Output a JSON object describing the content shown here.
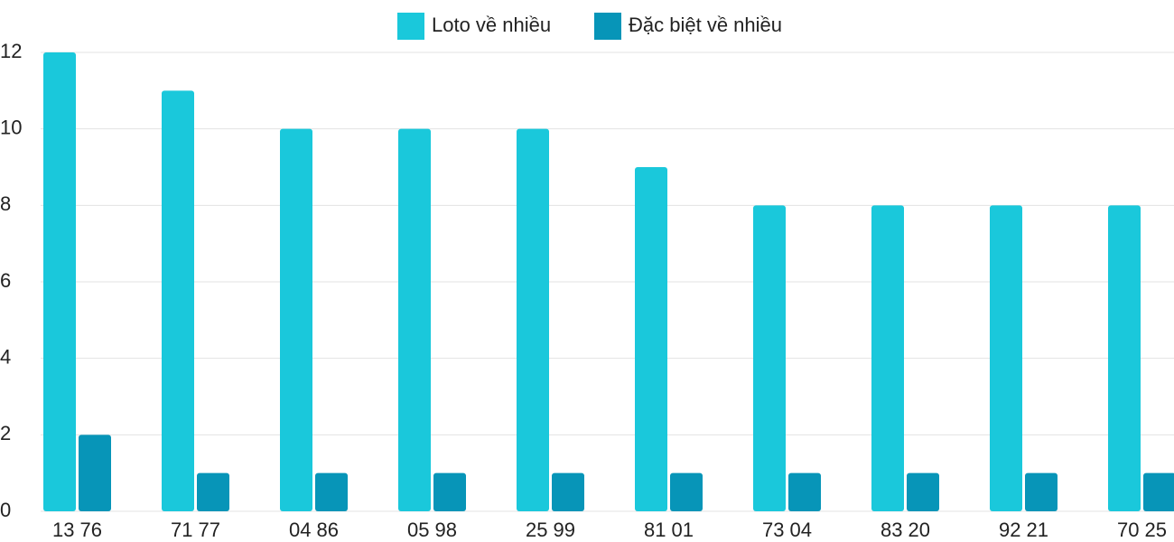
{
  "chart_data": {
    "type": "bar",
    "categories": [
      "13 76",
      "71 77",
      "04 86",
      "05 98",
      "25 99",
      "81 01",
      "73 04",
      "83 20",
      "92 21",
      "70 25"
    ],
    "series": [
      {
        "name": "Loto về nhiều",
        "color": "#1ac8db",
        "values": [
          12,
          11,
          10,
          10,
          10,
          9,
          8,
          8,
          8,
          8
        ]
      },
      {
        "name": "Đặc biệt về nhiều",
        "color": "#0795b8",
        "values": [
          2,
          1,
          1,
          1,
          1,
          1,
          1,
          1,
          1,
          1
        ]
      }
    ],
    "ylim": [
      0,
      12
    ],
    "yticks": [
      0,
      2,
      4,
      6,
      8,
      10,
      12
    ],
    "grid": true,
    "legend": "top"
  }
}
